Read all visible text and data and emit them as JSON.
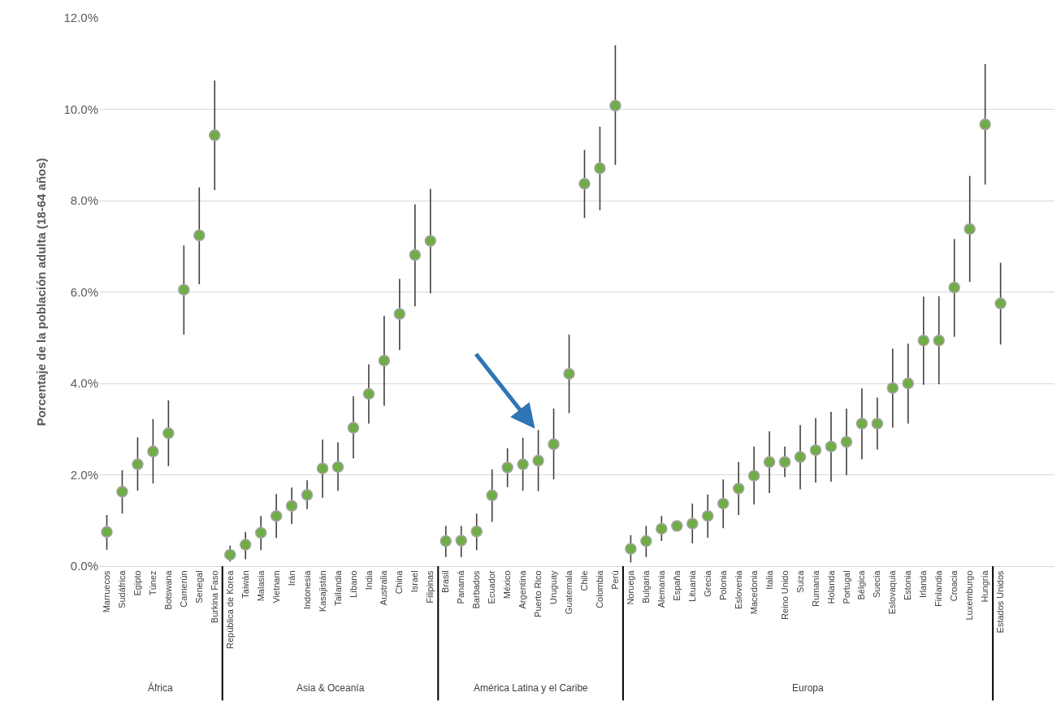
{
  "chart_data": {
    "type": "scatter",
    "ylabel": "Porcentaje de la población adulta (18-64 años)",
    "categories": [
      "Marruecos",
      "Sudáfrica",
      "Egipto",
      "Túnez",
      "Botswana",
      "Camerún",
      "Senegal",
      "Burkina Faso",
      "República de Korea",
      "Taiwán",
      "Malasia",
      "Vietnam",
      "Irán",
      "Indonesia",
      "Kasajistán",
      "Tailandia",
      "Líbano",
      "India",
      "Australia",
      "China",
      "Israel",
      "Filipinas",
      "Brasil",
      "Panamá",
      "Barbados",
      "Ecuador",
      "México",
      "Argentina",
      "Puerto Rico",
      "Uruguay",
      "Guatemala",
      "Chile",
      "Colombia",
      "Perú",
      "Noruega",
      "Bulgaria",
      "Alemania",
      "España",
      "Lituania",
      "Grecia",
      "Polonia",
      "Eslovenia",
      "Macedonia",
      "Italia",
      "Reino Unido",
      "Suiza",
      "Rumanía",
      "Holanda",
      "Portugal",
      "Bélgica",
      "Suecia",
      "Eslovaquia",
      "Estonia",
      "Irlanda",
      "Finlandia",
      "Croacia",
      "Luxemburgo",
      "Hungría",
      "Estados Unidos",
      null,
      null,
      null
    ],
    "series": [
      {
        "color": "#70ad47",
        "values": [
          0.75,
          1.63,
          2.23,
          2.51,
          2.91,
          6.05,
          7.24,
          9.43,
          0.25,
          0.47,
          0.73,
          1.1,
          1.32,
          1.56,
          2.14,
          2.17,
          3.03,
          3.77,
          4.5,
          5.52,
          6.81,
          7.12,
          0.55,
          0.56,
          0.76,
          1.55,
          2.16,
          2.23,
          2.31,
          2.67,
          4.21,
          8.37,
          8.71,
          10.08,
          0.38,
          0.55,
          0.82,
          0.88,
          0.93,
          1.1,
          1.37,
          1.7,
          1.98,
          2.28,
          2.28,
          2.39,
          2.54,
          2.62,
          2.72,
          3.12,
          3.12,
          3.9,
          4.0,
          4.94,
          4.94,
          6.1,
          7.38,
          9.67,
          5.75,
          null,
          null,
          null
        ],
        "errors": [
          [
            0.36,
            1.12
          ],
          [
            1.15,
            2.1
          ],
          [
            1.65,
            2.82
          ],
          [
            1.81,
            3.22
          ],
          [
            2.19,
            3.63
          ],
          [
            5.07,
            7.02
          ],
          [
            6.17,
            8.29
          ],
          [
            8.23,
            10.63
          ],
          [
            0.1,
            0.45
          ],
          [
            0.15,
            0.75
          ],
          [
            0.35,
            1.1
          ],
          [
            0.62,
            1.58
          ],
          [
            0.92,
            1.72
          ],
          [
            1.25,
            1.88
          ],
          [
            1.5,
            2.77
          ],
          [
            1.65,
            2.71
          ],
          [
            2.36,
            3.72
          ],
          [
            3.12,
            4.42
          ],
          [
            3.51,
            5.48
          ],
          [
            4.73,
            6.29
          ],
          [
            5.69,
            7.92
          ],
          [
            5.97,
            8.26
          ],
          [
            0.2,
            0.88
          ],
          [
            0.2,
            0.88
          ],
          [
            0.35,
            1.15
          ],
          [
            0.97,
            2.12
          ],
          [
            1.73,
            2.58
          ],
          [
            1.65,
            2.81
          ],
          [
            1.64,
            2.98
          ],
          [
            1.9,
            3.45
          ],
          [
            3.35,
            5.07
          ],
          [
            7.62,
            9.11
          ],
          [
            7.79,
            9.62
          ],
          [
            8.78,
            11.4
          ],
          [
            0.08,
            0.68
          ],
          [
            0.2,
            0.88
          ],
          [
            0.55,
            1.1
          ],
          [
            0.8,
            0.95
          ],
          [
            0.5,
            1.37
          ],
          [
            0.62,
            1.57
          ],
          [
            0.83,
            1.9
          ],
          [
            1.12,
            2.28
          ],
          [
            1.35,
            2.62
          ],
          [
            1.6,
            2.95
          ],
          [
            1.95,
            2.62
          ],
          [
            1.68,
            3.09
          ],
          [
            1.83,
            3.24
          ],
          [
            1.85,
            3.38
          ],
          [
            1.99,
            3.45
          ],
          [
            2.34,
            3.89
          ],
          [
            2.55,
            3.69
          ],
          [
            3.03,
            4.76
          ],
          [
            3.12,
            4.87
          ],
          [
            3.97,
            5.9
          ],
          [
            3.98,
            5.91
          ],
          [
            5.02,
            7.16
          ],
          [
            6.22,
            8.54
          ],
          [
            8.35,
            10.99
          ],
          [
            4.85,
            6.64
          ],
          null,
          null,
          null
        ]
      }
    ],
    "ylim": [
      0,
      12
    ],
    "yticks": [
      {
        "value": 0,
        "label": "0.0%"
      },
      {
        "value": 2,
        "label": "2.0%"
      },
      {
        "value": 4,
        "label": "4.0%"
      },
      {
        "value": 6,
        "label": "6.0%"
      },
      {
        "value": 8,
        "label": "8.0%"
      },
      {
        "value": 10,
        "label": "10.0%"
      },
      {
        "value": 12,
        "label": "12.0%"
      }
    ],
    "grid": "y",
    "marker": "circle",
    "annotations": [
      "África",
      "Asia & Oceanía",
      "América Latina y el Caribe",
      "Europa"
    ]
  }
}
